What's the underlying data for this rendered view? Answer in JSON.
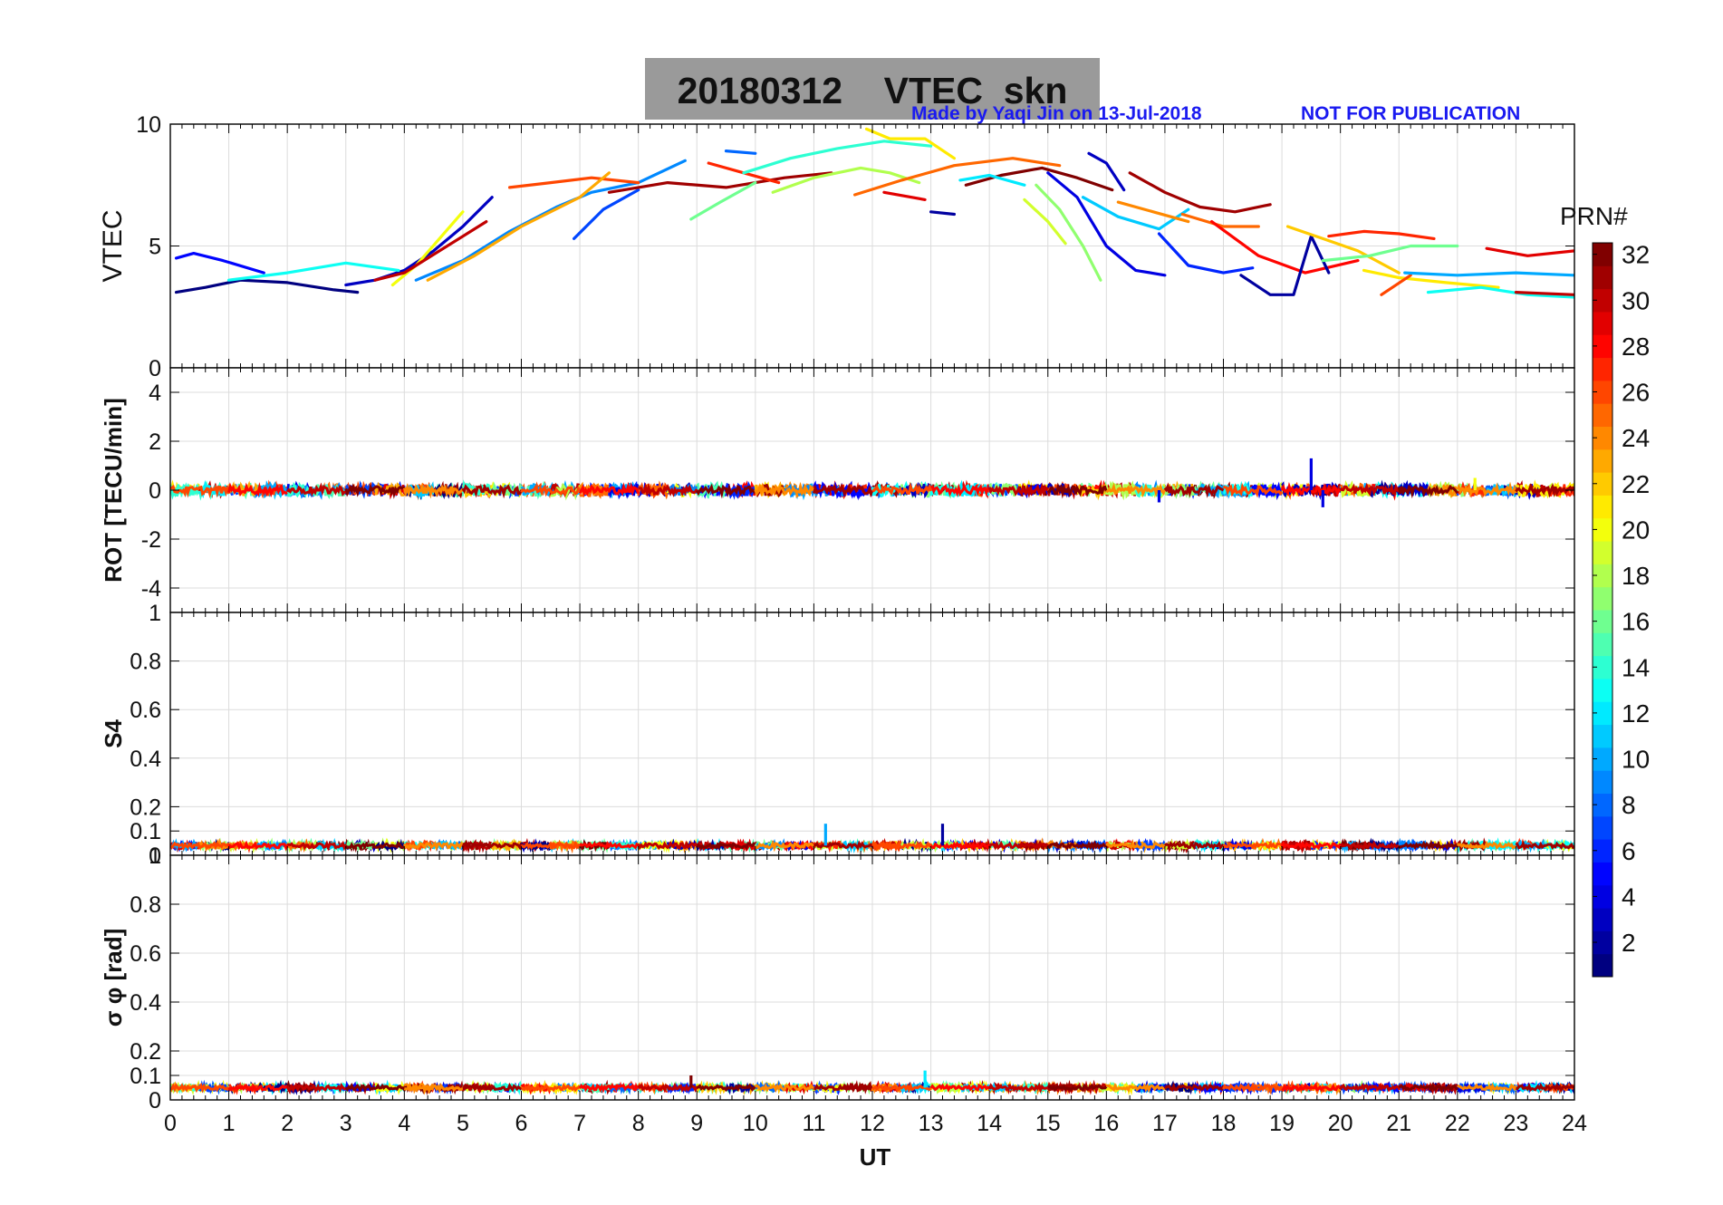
{
  "figure": {
    "title_date": "20180312",
    "title_label": "VTEC  skn",
    "credit": "Made by Yaqi Jin on 13-Jul-2018",
    "disclaimer": "NOT FOR PUBLICATION",
    "xlabel": "UT"
  },
  "colors": {
    "title_bg": "#9a9a9a",
    "credit_text": "#1a1af0",
    "grid": "#dcdcdc",
    "axes": "#000000"
  },
  "chart_data": [
    {
      "type": "line",
      "id": "vtec",
      "ylabel": "VTEC",
      "xlim": [
        0,
        24
      ],
      "ylim": [
        0,
        10
      ],
      "yticks": [
        0,
        5,
        10
      ],
      "grid": true,
      "description": "Vertical TEC per satellite pass, colored by PRN",
      "series": [
        {
          "prn": 1,
          "x": [
            0.1,
            0.6,
            1.2,
            2.0,
            2.8,
            3.2
          ],
          "y": [
            3.1,
            3.3,
            3.6,
            3.5,
            3.2,
            3.1
          ]
        },
        {
          "prn": 5,
          "x": [
            0.1,
            0.4,
            0.9,
            1.6
          ],
          "y": [
            4.5,
            4.7,
            4.4,
            3.9
          ]
        },
        {
          "prn": 3,
          "x": [
            3.0,
            3.5,
            4.0,
            4.5,
            5.0,
            5.5
          ],
          "y": [
            3.4,
            3.6,
            4.0,
            4.8,
            5.8,
            7.0
          ]
        },
        {
          "prn": 9,
          "x": [
            4.2,
            5.0,
            5.8,
            6.6,
            7.2,
            8.0,
            8.8
          ],
          "y": [
            3.6,
            4.4,
            5.6,
            6.6,
            7.2,
            7.6,
            8.5
          ]
        },
        {
          "prn": 20,
          "x": [
            3.8,
            4.2,
            4.6,
            5.0
          ],
          "y": [
            3.4,
            4.2,
            5.3,
            6.4
          ]
        },
        {
          "prn": 30,
          "x": [
            3.5,
            4.0,
            4.6,
            5.4
          ],
          "y": [
            3.6,
            3.9,
            4.8,
            6.0
          ]
        },
        {
          "prn": 26,
          "x": [
            5.8,
            6.5,
            7.2,
            8.0
          ],
          "y": [
            7.4,
            7.6,
            7.8,
            7.6
          ]
        },
        {
          "prn": 23,
          "x": [
            4.4,
            5.2,
            6.0,
            7.0,
            7.5
          ],
          "y": [
            3.6,
            4.6,
            5.8,
            7.0,
            8.0
          ]
        },
        {
          "prn": 13,
          "x": [
            1.0,
            2.0,
            3.0,
            3.9
          ],
          "y": [
            3.6,
            3.9,
            4.3,
            4.0
          ]
        },
        {
          "prn": 7,
          "x": [
            6.9,
            7.4,
            8.0
          ],
          "y": [
            5.3,
            6.5,
            7.3
          ]
        },
        {
          "prn": 31,
          "x": [
            7.5,
            8.5,
            9.5,
            10.5,
            11.3
          ],
          "y": [
            7.2,
            7.6,
            7.4,
            7.8,
            8.0
          ]
        },
        {
          "prn": 16,
          "x": [
            8.9,
            9.4,
            10.0
          ],
          "y": [
            6.1,
            6.8,
            7.6
          ]
        },
        {
          "prn": 8,
          "x": [
            9.5,
            10.0
          ],
          "y": [
            8.9,
            8.8
          ]
        },
        {
          "prn": 27,
          "x": [
            9.2,
            9.8,
            10.4
          ],
          "y": [
            8.4,
            8.0,
            7.6
          ]
        },
        {
          "prn": 14,
          "x": [
            9.8,
            10.6,
            11.4,
            12.2,
            13.0
          ],
          "y": [
            8.0,
            8.6,
            9.0,
            9.3,
            9.1
          ]
        },
        {
          "prn": 18,
          "x": [
            10.3,
            11.0,
            11.8,
            12.3,
            12.8
          ],
          "y": [
            7.2,
            7.8,
            8.2,
            8.0,
            7.6
          ]
        },
        {
          "prn": 21,
          "x": [
            11.9,
            12.3,
            12.9,
            13.4
          ],
          "y": [
            9.8,
            9.4,
            9.4,
            8.6
          ]
        },
        {
          "prn": 25,
          "x": [
            11.7,
            12.5,
            13.4,
            14.4,
            15.2
          ],
          "y": [
            7.1,
            7.7,
            8.3,
            8.6,
            8.3
          ]
        },
        {
          "prn": 29,
          "x": [
            12.2,
            12.9
          ],
          "y": [
            7.2,
            6.9
          ]
        },
        {
          "prn": 2,
          "x": [
            13.0,
            13.4
          ],
          "y": [
            6.4,
            6.3
          ]
        },
        {
          "prn": 32,
          "x": [
            13.6,
            14.2,
            14.9,
            15.5,
            16.1
          ],
          "y": [
            7.5,
            7.9,
            8.2,
            7.8,
            7.3
          ]
        },
        {
          "prn": 12,
          "x": [
            13.5,
            14.0,
            14.6
          ],
          "y": [
            7.7,
            7.9,
            7.5
          ]
        },
        {
          "prn": 4,
          "x": [
            15.0,
            15.5,
            16.0,
            16.5,
            17.0
          ],
          "y": [
            8.0,
            7.0,
            5.0,
            4.0,
            3.8
          ]
        },
        {
          "prn": 17,
          "x": [
            14.8,
            15.2,
            15.6,
            15.9
          ],
          "y": [
            7.5,
            6.5,
            5.0,
            3.6
          ]
        },
        {
          "prn": 19,
          "x": [
            14.6,
            15.0,
            15.3
          ],
          "y": [
            6.9,
            6.0,
            5.1
          ]
        },
        {
          "prn": 3,
          "x": [
            15.7,
            16.0,
            16.3
          ],
          "y": [
            8.8,
            8.4,
            7.3
          ]
        },
        {
          "prn": 11,
          "x": [
            15.6,
            16.2,
            16.9,
            17.4
          ],
          "y": [
            7.0,
            6.2,
            5.7,
            6.5
          ]
        },
        {
          "prn": 24,
          "x": [
            16.2,
            16.8,
            17.4
          ],
          "y": [
            6.8,
            6.4,
            6.0
          ]
        },
        {
          "prn": 31,
          "x": [
            16.4,
            17.0,
            17.6,
            18.2,
            18.8
          ],
          "y": [
            8.0,
            7.2,
            6.6,
            6.4,
            6.7
          ]
        },
        {
          "prn": 6,
          "x": [
            16.9,
            17.4,
            18.0,
            18.5
          ],
          "y": [
            5.5,
            4.2,
            3.9,
            4.1
          ]
        },
        {
          "prn": 25,
          "x": [
            17.3,
            18.0,
            18.6
          ],
          "y": [
            6.3,
            5.8,
            5.8
          ]
        },
        {
          "prn": 28,
          "x": [
            17.8,
            18.6,
            19.4,
            20.3
          ],
          "y": [
            6.0,
            4.6,
            3.9,
            4.4
          ]
        },
        {
          "prn": 2,
          "x": [
            18.3,
            18.8,
            19.2,
            19.5,
            19.8
          ],
          "y": [
            3.8,
            3.0,
            3.0,
            5.4,
            3.9
          ]
        },
        {
          "prn": 22,
          "x": [
            19.1,
            19.7,
            20.3,
            21.0
          ],
          "y": [
            5.8,
            5.3,
            4.8,
            3.9
          ]
        },
        {
          "prn": 27,
          "x": [
            19.8,
            20.4,
            21.0,
            21.6
          ],
          "y": [
            5.4,
            5.6,
            5.5,
            5.3
          ]
        },
        {
          "prn": 16,
          "x": [
            19.7,
            20.5,
            21.2,
            22.0
          ],
          "y": [
            4.4,
            4.6,
            5.0,
            5.0
          ]
        },
        {
          "prn": 21,
          "x": [
            20.4,
            21.0,
            21.8,
            22.7
          ],
          "y": [
            4.0,
            3.7,
            3.5,
            3.3
          ]
        },
        {
          "prn": 26,
          "x": [
            20.7,
            21.2
          ],
          "y": [
            3.0,
            3.8
          ]
        },
        {
          "prn": 10,
          "x": [
            21.1,
            22.0,
            23.0,
            24.0
          ],
          "y": [
            3.9,
            3.8,
            3.9,
            3.8
          ]
        },
        {
          "prn": 13,
          "x": [
            21.5,
            22.4,
            23.2,
            24.0
          ],
          "y": [
            3.1,
            3.3,
            3.0,
            2.9
          ]
        },
        {
          "prn": 29,
          "x": [
            22.5,
            23.2,
            24.0
          ],
          "y": [
            4.9,
            4.6,
            4.8
          ]
        },
        {
          "prn": 30,
          "x": [
            23.0,
            24.0
          ],
          "y": [
            3.1,
            3.0
          ]
        }
      ]
    },
    {
      "type": "line",
      "id": "rot",
      "ylabel": "ROT [TECU/min]",
      "xlim": [
        0,
        24
      ],
      "ylim": [
        -5,
        5
      ],
      "yticks": [
        -4,
        -2,
        0,
        2,
        4
      ],
      "grid": true,
      "description": "Rate of TEC change, near zero all day",
      "baseline": 0,
      "band": 0.25,
      "spikes": [
        {
          "x": 19.5,
          "y": 1.3,
          "prn": 4
        },
        {
          "x": 19.7,
          "y": -0.7,
          "prn": 4
        },
        {
          "x": 16.9,
          "y": -0.5,
          "prn": 4
        },
        {
          "x": 22.3,
          "y": 0.5,
          "prn": 20
        }
      ]
    },
    {
      "type": "line",
      "id": "s4",
      "ylabel": "S4",
      "xlim": [
        0,
        24
      ],
      "ylim": [
        0,
        1
      ],
      "yticks": [
        0,
        0.1,
        0.2,
        0.4,
        0.6,
        0.8,
        1
      ],
      "grid": true,
      "description": "Amplitude scintillation index, low all day",
      "baseline": 0.04,
      "band": 0.015,
      "spikes": [
        {
          "x": 11.2,
          "y": 0.13,
          "prn": 10
        },
        {
          "x": 13.2,
          "y": 0.13,
          "prn": 2
        }
      ]
    },
    {
      "type": "line",
      "id": "sigma_phi",
      "ylabel": "σ φ [rad]",
      "xlim": [
        0,
        24
      ],
      "ylim": [
        0,
        1
      ],
      "yticks": [
        0,
        0.1,
        0.2,
        0.4,
        0.6,
        0.8,
        1
      ],
      "xticks": [
        0,
        1,
        2,
        3,
        4,
        5,
        6,
        7,
        8,
        9,
        10,
        11,
        12,
        13,
        14,
        15,
        16,
        17,
        18,
        19,
        20,
        21,
        22,
        23,
        24
      ],
      "grid": true,
      "description": "Phase scintillation index, low all day",
      "baseline": 0.05,
      "band": 0.015,
      "spikes": [
        {
          "x": 12.9,
          "y": 0.12,
          "prn": 12
        },
        {
          "x": 8.9,
          "y": 0.1,
          "prn": 32
        }
      ]
    }
  ],
  "colorbar": {
    "label": "PRN#",
    "min": 1,
    "max": 32,
    "ticks": [
      2,
      4,
      6,
      8,
      10,
      12,
      14,
      16,
      18,
      20,
      22,
      24,
      26,
      28,
      30,
      32
    ],
    "colormap": "jet"
  }
}
